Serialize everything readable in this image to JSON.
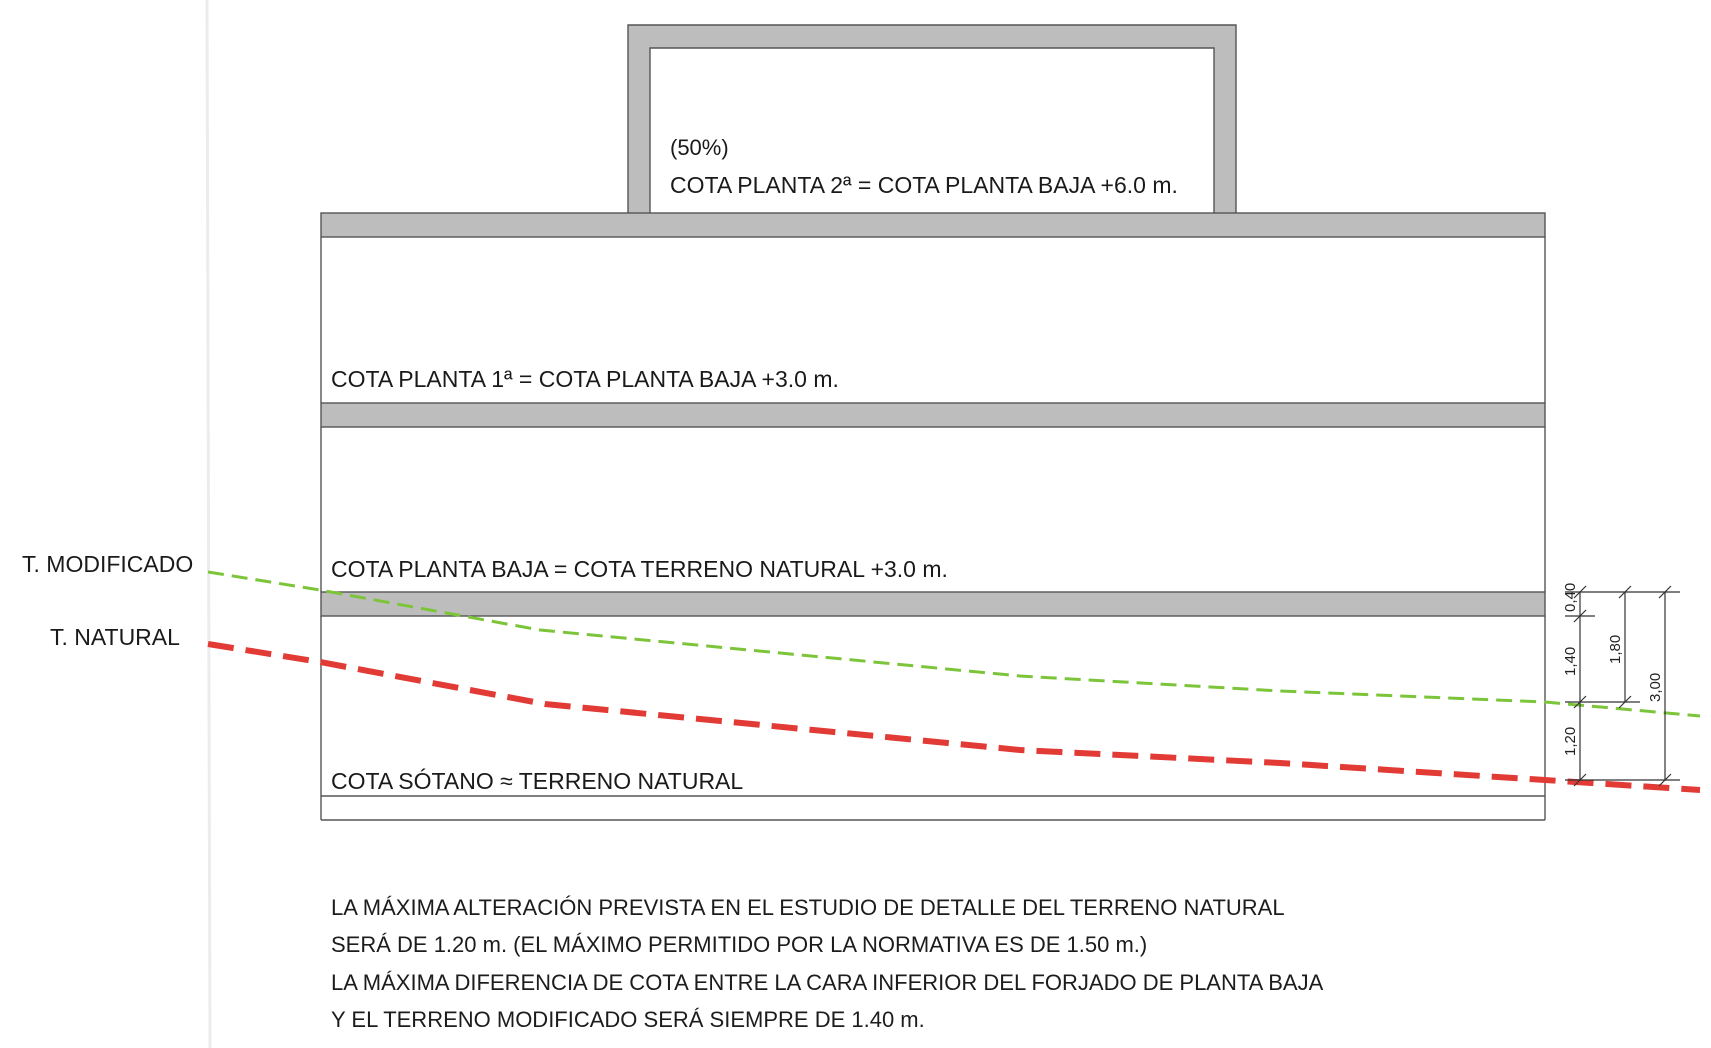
{
  "diagram": {
    "labels": {
      "percent": "(50%)",
      "floor2": "COTA PLANTA 2ª = COTA PLANTA BAJA +6.0 m.",
      "floor1": "COTA PLANTA 1ª = COTA PLANTA BAJA +3.0 m.",
      "ground_floor": "COTA PLANTA BAJA = COTA TERRENO NATURAL +3.0 m.",
      "basement": "COTA SÓTANO ≈ TERRENO NATURAL"
    },
    "terrain": {
      "modified_label": "T. MODIFICADO",
      "natural_label": "T. NATURAL",
      "modified_color": "#7cc53a",
      "natural_color": "#e23a34"
    },
    "dimensions": [
      "0,40",
      "1,40",
      "1,20",
      "1,80",
      "3,00"
    ],
    "notes": [
      "LA MÁXIMA ALTERACIÓN PREVISTA EN EL ESTUDIO DE DETALLE DEL TERRENO NATURAL",
      "SERÁ DE 1.20 m. (EL MÁXIMO PERMITIDO POR LA NORMATIVA ES DE 1.50 m.)",
      "LA MÁXIMA DIFERENCIA DE COTA ENTRE LA CARA INFERIOR DEL FORJADO DE PLANTA BAJA",
      "Y EL TERRENO MODIFICADO SERÁ SIEMPRE DE 1.40 m."
    ]
  }
}
